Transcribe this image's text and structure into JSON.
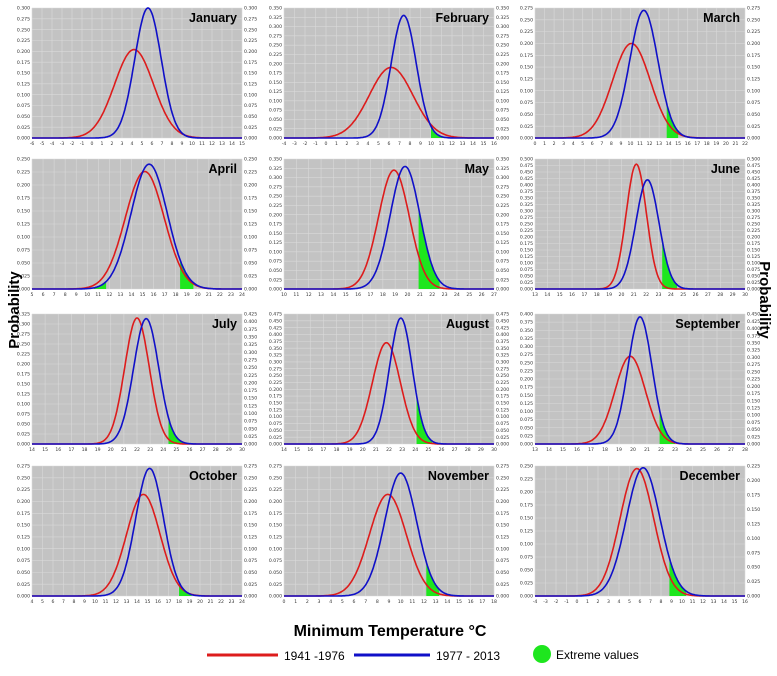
{
  "xlabel": "Minimum Temperature °C",
  "ylabel": "Probability",
  "legend": [
    {
      "label": "1941 -1976",
      "color": "#dd1c1c",
      "kind": "line"
    },
    {
      "label": "1977 - 2013",
      "color": "#1010c8",
      "kind": "line"
    },
    {
      "label": "Extreme values",
      "color": "#1ee61e",
      "kind": "circle"
    }
  ],
  "chart_data": [
    {
      "type": "line",
      "title": "January",
      "xticks": [
        -6,
        -5,
        -4,
        -3,
        -2,
        -1,
        0,
        1,
        2,
        3,
        4,
        5,
        6,
        7,
        8,
        9,
        10,
        11,
        12,
        13,
        14,
        15
      ],
      "y_left_max": 0.3,
      "y_left_step": 0.025,
      "y_right_max": 0.3,
      "y_right_step": 0.025,
      "series": [
        {
          "name": "1941 -1976",
          "mean": 4.2,
          "sd": 1.95,
          "peak_left": 0.204
        },
        {
          "name": "1977 - 2013",
          "mean": 5.6,
          "sd": 1.33,
          "peak_right": 0.3
        }
      ],
      "extreme": [
        {
          "from": -1.5,
          "to": 0.5
        }
      ]
    },
    {
      "type": "line",
      "title": "February",
      "xticks": [
        -4,
        -3,
        -2,
        -1,
        0,
        1,
        2,
        3,
        4,
        5,
        6,
        7,
        8,
        9,
        10,
        11,
        12,
        13,
        14,
        15,
        16
      ],
      "y_left_max": 0.35,
      "y_left_step": 0.025,
      "y_right_max": 0.35,
      "y_right_step": 0.025,
      "series": [
        {
          "name": "1941 -1976",
          "mean": 6.2,
          "sd": 2.08,
          "peak_left": 0.19
        },
        {
          "name": "1977 - 2013",
          "mean": 7.4,
          "sd": 1.2,
          "peak_right": 0.33
        }
      ],
      "extreme": [
        {
          "from": 10,
          "to": 11.2
        }
      ]
    },
    {
      "type": "line",
      "title": "March",
      "xticks": [
        0,
        1,
        2,
        3,
        4,
        5,
        6,
        7,
        8,
        9,
        10,
        11,
        12,
        13,
        14,
        15,
        16,
        17,
        18,
        19,
        20,
        21,
        22
      ],
      "y_left_max": 0.275,
      "y_left_step": 0.025,
      "y_right_max": 0.275,
      "y_right_step": 0.025,
      "series": [
        {
          "name": "1941 -1976",
          "mean": 10.1,
          "sd": 1.98,
          "peak_left": 0.2
        },
        {
          "name": "1977 - 2013",
          "mean": 11.4,
          "sd": 1.48,
          "peak_right": 0.27
        }
      ],
      "extreme": [
        {
          "from": 5,
          "to": 6
        },
        {
          "from": 13.8,
          "to": 15
        }
      ]
    },
    {
      "type": "line",
      "title": "April",
      "xticks": [
        5,
        6,
        7,
        8,
        9,
        10,
        11,
        12,
        13,
        14,
        15,
        16,
        17,
        18,
        19,
        20,
        21,
        22,
        23,
        24
      ],
      "y_left_max": 0.25,
      "y_left_step": 0.025,
      "y_right_max": 0.25,
      "y_right_step": 0.025,
      "series": [
        {
          "name": "1941 -1976",
          "mean": 15.2,
          "sd": 1.76,
          "peak_left": 0.226
        },
        {
          "name": "1977 - 2013",
          "mean": 15.6,
          "sd": 1.64,
          "peak_right": 0.24
        }
      ],
      "extreme": [
        {
          "from": 10.6,
          "to": 11.7
        },
        {
          "from": 18.4,
          "to": 19.6
        }
      ]
    },
    {
      "type": "line",
      "title": "May",
      "xticks": [
        10,
        11,
        12,
        13,
        14,
        15,
        16,
        17,
        18,
        19,
        20,
        21,
        22,
        23,
        24,
        25,
        26,
        27
      ],
      "y_left_max": 0.35,
      "y_left_step": 0.025,
      "y_right_max": 0.35,
      "y_right_step": 0.025,
      "series": [
        {
          "name": "1941 -1976",
          "mean": 18.9,
          "sd": 1.25,
          "peak_left": 0.32
        },
        {
          "name": "1977 - 2013",
          "mean": 19.8,
          "sd": 1.2,
          "peak_right": 0.33
        }
      ],
      "extreme": [
        {
          "from": 20.9,
          "to": 22.6
        }
      ]
    },
    {
      "type": "line",
      "title": "June",
      "xticks": [
        13,
        14,
        15,
        16,
        17,
        18,
        19,
        20,
        21,
        22,
        23,
        24,
        25,
        26,
        27,
        28,
        29,
        30
      ],
      "y_left_max": 0.5,
      "y_left_step": 0.025,
      "y_right_max": 0.5,
      "y_right_step": 0.025,
      "series": [
        {
          "name": "1941 -1976",
          "mean": 21.2,
          "sd": 0.82,
          "peak_left": 0.48
        },
        {
          "name": "1977 - 2013",
          "mean": 22.1,
          "sd": 0.94,
          "peak_right": 0.42
        }
      ],
      "extreme": [
        {
          "from": 23.3,
          "to": 24.5
        }
      ]
    },
    {
      "type": "line",
      "title": "July",
      "xticks": [
        14,
        15,
        16,
        17,
        18,
        19,
        20,
        21,
        22,
        23,
        24,
        25,
        26,
        27,
        28,
        29,
        30
      ],
      "y_left_max": 0.325,
      "y_left_step": 0.025,
      "y_right_max": 0.425,
      "y_right_step": 0.025,
      "series": [
        {
          "name": "1941 -1976",
          "mean": 22,
          "sd": 0.94,
          "peak_left": 0.315
        },
        {
          "name": "1977 - 2013",
          "mean": 22.7,
          "sd": 0.96,
          "peak_right": 0.41
        }
      ],
      "extreme": [
        {
          "from": 24.4,
          "to": 25.5
        }
      ]
    },
    {
      "type": "line",
      "title": "August",
      "xticks": [
        14,
        15,
        16,
        17,
        18,
        19,
        20,
        21,
        22,
        23,
        24,
        25,
        26,
        27,
        28,
        29,
        30
      ],
      "y_left_max": 0.475,
      "y_left_step": 0.025,
      "y_right_max": 0.475,
      "y_right_step": 0.025,
      "series": [
        {
          "name": "1941 -1976",
          "mean": 21.8,
          "sd": 1.07,
          "peak_left": 0.37
        },
        {
          "name": "1977 - 2013",
          "mean": 22.9,
          "sd": 0.87,
          "peak_right": 0.46
        }
      ],
      "extreme": [
        {
          "from": 19.3,
          "to": 20.2
        },
        {
          "from": 24.1,
          "to": 25.3
        }
      ]
    },
    {
      "type": "line",
      "title": "September",
      "xticks": [
        13,
        14,
        15,
        16,
        17,
        18,
        19,
        20,
        21,
        22,
        23,
        24,
        25,
        26,
        27,
        28
      ],
      "y_left_max": 0.4,
      "y_left_step": 0.025,
      "y_right_max": 0.45,
      "y_right_step": 0.025,
      "series": [
        {
          "name": "1941 -1976",
          "mean": 19.8,
          "sd": 1.09,
          "peak_left": 0.27
        },
        {
          "name": "1977 - 2013",
          "mean": 20.5,
          "sd": 0.86,
          "peak_right": 0.44
        }
      ],
      "extreme": [
        {
          "from": 21.9,
          "to": 23
        }
      ]
    },
    {
      "type": "line",
      "title": "October",
      "xticks": [
        4,
        5,
        6,
        7,
        8,
        9,
        10,
        11,
        12,
        13,
        14,
        15,
        16,
        17,
        18,
        19,
        20,
        21,
        22,
        23,
        24
      ],
      "y_left_max": 0.275,
      "y_left_step": 0.025,
      "y_right_max": 0.275,
      "y_right_step": 0.025,
      "series": [
        {
          "name": "1941 -1976",
          "mean": 14.6,
          "sd": 1.6,
          "peak_left": 0.215
        },
        {
          "name": "1977 - 2013",
          "mean": 15.2,
          "sd": 1.33,
          "peak_right": 0.27
        }
      ],
      "extreme": [
        {
          "from": 18,
          "to": 19.2
        }
      ]
    },
    {
      "type": "line",
      "title": "November",
      "xticks": [
        0,
        1,
        2,
        3,
        4,
        5,
        6,
        7,
        8,
        9,
        10,
        11,
        12,
        13,
        14,
        15,
        16,
        17,
        18
      ],
      "y_left_max": 0.275,
      "y_left_step": 0.025,
      "y_right_max": 0.275,
      "y_right_step": 0.025,
      "series": [
        {
          "name": "1941 -1976",
          "mean": 8.9,
          "sd": 1.58,
          "peak_left": 0.215
        },
        {
          "name": "1977 - 2013",
          "mean": 10,
          "sd": 1.37,
          "peak_right": 0.26
        }
      ],
      "extreme": [
        {
          "from": 4.2,
          "to": 5.2
        },
        {
          "from": 12.2,
          "to": 13.3
        }
      ]
    },
    {
      "type": "line",
      "title": "December",
      "xticks": [
        -4,
        -3,
        -2,
        -1,
        0,
        1,
        2,
        3,
        4,
        5,
        6,
        7,
        8,
        9,
        10,
        11,
        12,
        13,
        14,
        15,
        16
      ],
      "y_left_max": 0.25,
      "y_left_step": 0.025,
      "y_right_max": 0.225,
      "y_right_step": 0.025,
      "series": [
        {
          "name": "1941 -1976",
          "mean": 5.7,
          "sd": 1.61,
          "peak_left": 0.245
        },
        {
          "name": "1977 - 2013",
          "mean": 6.3,
          "sd": 1.6,
          "peak_right": 0.222
        }
      ],
      "extreme": [
        {
          "from": -0.6,
          "to": 1.2
        },
        {
          "from": 8.8,
          "to": 10.4
        }
      ]
    }
  ]
}
